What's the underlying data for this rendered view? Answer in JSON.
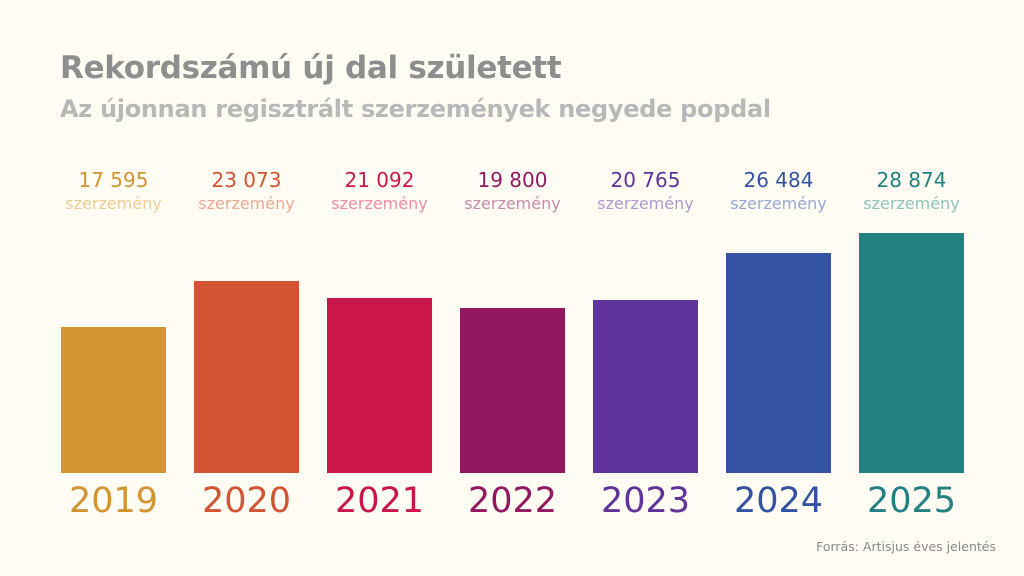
{
  "title": "Rekordszámú új dal született",
  "subtitle": "Az újonnan regisztrált szerzemények negyede popdal",
  "source": "Forrás: Artisjus éves jelentés",
  "chart_data": {
    "type": "bar",
    "title": "Rekordszámú új dal született",
    "subtitle": "Az újonnan regisztrált szerzemények negyede popdal",
    "categories": [
      "2019",
      "2020",
      "2021",
      "2022",
      "2023",
      "2024",
      "2025"
    ],
    "values": [
      17595,
      23073,
      21092,
      19800,
      20765,
      26484,
      28874
    ],
    "value_labels": [
      "17 595",
      "23 073",
      "21 092",
      "19 800",
      "20 765",
      "26 484",
      "28 874"
    ],
    "unit_label": "szerzemény",
    "ylim": [
      0,
      28874
    ],
    "grid": false,
    "colors": [
      "#D39532",
      "#D35433",
      "#CB164B",
      "#921860",
      "#5F3399",
      "#3352A2",
      "#238281"
    ],
    "unit_colors": [
      "#EDCB94",
      "#EDA892",
      "#EE8CA6",
      "#C98AAE",
      "#AE98CE",
      "#98A8D2",
      "#8EC2BF"
    ]
  }
}
